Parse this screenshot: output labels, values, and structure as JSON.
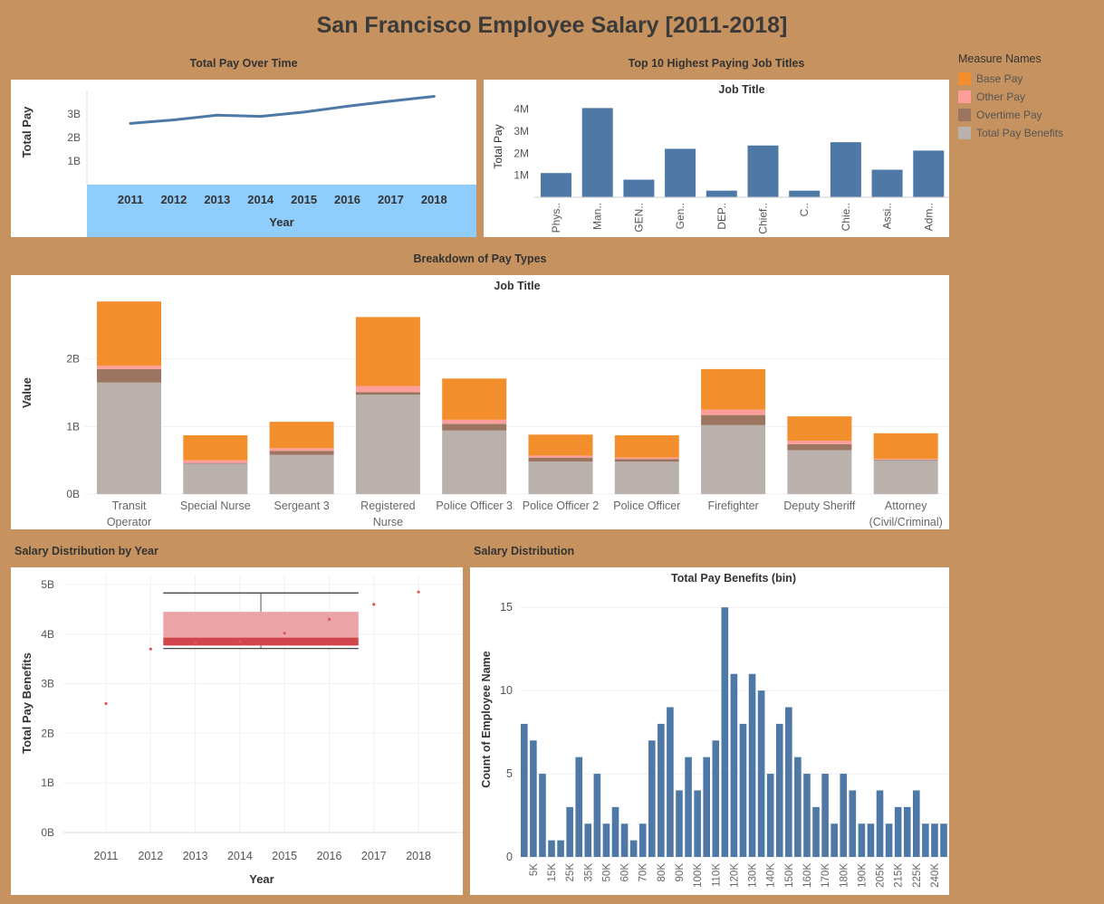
{
  "dashboard": {
    "title": "San Francisco Employee Salary [2011-2018]"
  },
  "legend": {
    "title": "Measure Names",
    "items": [
      {
        "label": "Base Pay",
        "color": "#f28e2b"
      },
      {
        "label": "Other Pay",
        "color": "#ff9d9a"
      },
      {
        "label": "Overtime Pay",
        "color": "#9c7561"
      },
      {
        "label": "Total Pay Benefits",
        "color": "#bab0ac"
      }
    ]
  },
  "chart_data": [
    {
      "id": "total-pay-over-time",
      "type": "line",
      "title": "Total Pay Over Time",
      "xlabel": "Year",
      "ylabel": "Total Pay",
      "x": [
        "2011",
        "2012",
        "2013",
        "2014",
        "2015",
        "2016",
        "2017",
        "2018"
      ],
      "values": [
        2.6,
        2.75,
        2.95,
        2.9,
        3.08,
        3.33,
        3.55,
        3.75
      ],
      "yticks": [
        {
          "v": 1,
          "label": "1B"
        },
        {
          "v": 2,
          "label": "2B"
        },
        {
          "v": 3,
          "label": "3B"
        }
      ],
      "ylim": [
        0,
        4
      ],
      "color": "#4e79a7",
      "axis_band_color": "#8ecdfc"
    },
    {
      "id": "top-10-job-titles",
      "type": "bar",
      "title": "Top 10 Highest Paying Job Titles",
      "header": "Job Title",
      "ylabel": "Total Pay",
      "categories": [
        "Phys..",
        "Man..",
        "GEN..",
        "Gen..",
        "DEP..",
        "Chief..",
        "C..",
        "Chie..",
        "Assi..",
        "Adm.."
      ],
      "values": [
        1.1,
        4.05,
        0.8,
        2.2,
        0.3,
        2.35,
        0.3,
        2.5,
        1.25,
        2.12
      ],
      "yticks": [
        {
          "v": 1,
          "label": "1M"
        },
        {
          "v": 2,
          "label": "2M"
        },
        {
          "v": 3,
          "label": "3M"
        },
        {
          "v": 4,
          "label": "4M"
        }
      ],
      "ylim": [
        0,
        4.6
      ],
      "color": "#4e79a7"
    },
    {
      "id": "breakdown-of-pay-types",
      "type": "bar",
      "stacked": true,
      "title": "Breakdown of Pay Types",
      "header": "Job Title",
      "ylabel": "Value",
      "categories": [
        [
          "Transit",
          "Operator"
        ],
        [
          "Special Nurse"
        ],
        [
          "Sergeant 3"
        ],
        [
          "Registered",
          "Nurse"
        ],
        [
          "Police Officer 3"
        ],
        [
          "Police Officer 2"
        ],
        [
          "Police Officer"
        ],
        [
          "Firefighter"
        ],
        [
          "Deputy Sheriff"
        ],
        [
          "Attorney",
          "(Civil/Criminal)"
        ]
      ],
      "series": [
        {
          "name": "Total Pay Benefits",
          "color": "#bab0ac",
          "values": [
            1.65,
            0.45,
            0.58,
            1.47,
            0.94,
            0.48,
            0.48,
            1.02,
            0.65,
            0.5
          ]
        },
        {
          "name": "Overtime Pay",
          "color": "#9c7561",
          "values": [
            0.2,
            0.01,
            0.06,
            0.04,
            0.1,
            0.06,
            0.04,
            0.15,
            0.09,
            0.01
          ]
        },
        {
          "name": "Other Pay",
          "color": "#ff9d9a",
          "values": [
            0.05,
            0.04,
            0.04,
            0.09,
            0.06,
            0.03,
            0.02,
            0.08,
            0.05,
            0.01
          ]
        },
        {
          "name": "Base Pay",
          "color": "#f28e2b",
          "values": [
            0.95,
            0.37,
            0.39,
            1.02,
            0.61,
            0.31,
            0.33,
            0.6,
            0.36,
            0.38
          ]
        }
      ],
      "yticks": [
        {
          "v": 0,
          "label": "0B"
        },
        {
          "v": 1,
          "label": "1B"
        },
        {
          "v": 2,
          "label": "2B"
        }
      ],
      "ylim": [
        0,
        3.0
      ]
    },
    {
      "id": "salary-distribution-by-year",
      "type": "scatter",
      "title": "Salary Distribution by Year",
      "xlabel": "Year",
      "ylabel": "Total Pay Benefits",
      "x": [
        "2011",
        "2012",
        "2013",
        "2014",
        "2015",
        "2016",
        "2017",
        "2018"
      ],
      "values": [
        2.6,
        3.7,
        3.83,
        3.85,
        4.02,
        4.3,
        4.6,
        4.85
      ],
      "boxplot": {
        "x_from": "2012",
        "x_to": "2017",
        "whisker_low": 3.71,
        "q1": 3.77,
        "median": 3.93,
        "q3": 4.45,
        "whisker_high": 4.83
      },
      "yticks": [
        {
          "v": 0,
          "label": "0B"
        },
        {
          "v": 1,
          "label": "1B"
        },
        {
          "v": 2,
          "label": "2B"
        },
        {
          "v": 3,
          "label": "3B"
        },
        {
          "v": 4,
          "label": "4B"
        },
        {
          "v": 5,
          "label": "5B"
        }
      ],
      "ylim": [
        0,
        5.2
      ],
      "color": "#e15759"
    },
    {
      "id": "salary-distribution",
      "type": "bar",
      "title": "Salary Distribution",
      "header": "Total Pay Benefits (bin)",
      "ylabel": "Count of Employee Name",
      "values": [
        8,
        7,
        5,
        1,
        1,
        3,
        6,
        2,
        5,
        2,
        3,
        2,
        1,
        2,
        7,
        8,
        9,
        4,
        6,
        4,
        6,
        7,
        15,
        11,
        8,
        11,
        10,
        5,
        8,
        9,
        6,
        5,
        3,
        5,
        2,
        5,
        4,
        2,
        2,
        4,
        2,
        3,
        3,
        4,
        2,
        2,
        2,
        1
      ],
      "xtick_labels": [
        "5K",
        "15K",
        "25K",
        "35K",
        "50K",
        "60K",
        "70K",
        "80K",
        "90K",
        "100K",
        "110K",
        "120K",
        "130K",
        "140K",
        "150K",
        "160K",
        "170K",
        "180K",
        "190K",
        "205K",
        "215K",
        "225K",
        "240K"
      ],
      "yticks": [
        {
          "v": 0,
          "label": "0"
        },
        {
          "v": 5,
          "label": "5"
        },
        {
          "v": 10,
          "label": "10"
        },
        {
          "v": 15,
          "label": "15"
        }
      ],
      "ylim": [
        0,
        15.5
      ],
      "color": "#4e79a7"
    }
  ]
}
